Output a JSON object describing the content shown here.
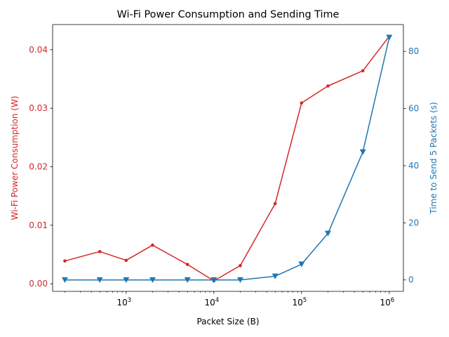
{
  "chart_data": {
    "type": "line",
    "title": "Wi-Fi Power Consumption and Sending Time",
    "xlabel": "Packet Size (B)",
    "xscale": "log",
    "xlim": [
      145,
      1450000
    ],
    "x": [
      200,
      500,
      1000,
      2000,
      5000,
      10000,
      20000,
      50000,
      100000,
      200000,
      500000,
      1000000
    ],
    "xticks": [
      {
        "value": 1000,
        "label": "10",
        "exp": "3"
      },
      {
        "value": 10000,
        "label": "10",
        "exp": "4"
      },
      {
        "value": 100000,
        "label": "10",
        "exp": "5"
      },
      {
        "value": 1000000,
        "label": "10",
        "exp": "6"
      }
    ],
    "y_left": {
      "label": "Wi-Fi Power Consumption (W)",
      "lim": [
        -0.0013,
        0.0443
      ],
      "ticks": [
        "0.00",
        "0.01",
        "0.02",
        "0.03",
        "0.04"
      ],
      "color": "#d62728"
    },
    "y_right": {
      "label": "Time to Send 5 Packets (s)",
      "lim": [
        -4.0,
        89.4
      ],
      "ticks": [
        "0",
        "20",
        "40",
        "60",
        "80"
      ],
      "color": "#1f77b4"
    },
    "series": [
      {
        "axis": "left",
        "color": "#d62728",
        "marker": "circle",
        "values": [
          0.0039,
          0.0055,
          0.004,
          0.0066,
          0.0033,
          0.0005,
          0.0031,
          0.0137,
          0.0309,
          0.0338,
          0.0364,
          0.0423
        ]
      },
      {
        "axis": "right",
        "color": "#1f77b4",
        "marker": "triangle-down",
        "values": [
          0.0,
          0.0,
          0.0,
          0.0,
          0.0,
          0.0,
          0.0,
          1.3,
          5.5,
          16.3,
          44.8,
          84.9
        ]
      }
    ],
    "grid": false
  }
}
